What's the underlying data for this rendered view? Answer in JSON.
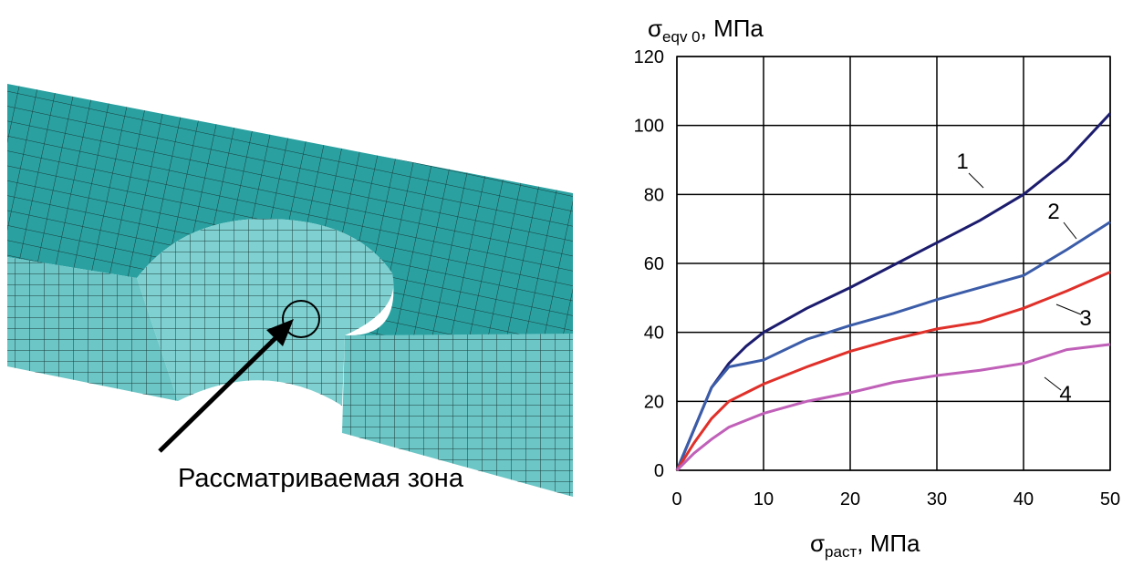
{
  "caption": "Рассматриваемая зона",
  "chart_data": {
    "type": "line",
    "y_label": {
      "symbol": "σ",
      "subscript": "eqv 0",
      "unit": ", МПа"
    },
    "x_label": {
      "symbol": "σ",
      "subscript": "раст",
      "unit": ", МПа"
    },
    "x": [
      0,
      2,
      4,
      6,
      8,
      10,
      15,
      20,
      25,
      30,
      35,
      40,
      45,
      50
    ],
    "xlim": [
      0,
      50
    ],
    "xticks": [
      0,
      10,
      20,
      30,
      40,
      50
    ],
    "ylim": [
      0,
      120
    ],
    "yticks": [
      0,
      20,
      40,
      60,
      80,
      100,
      120
    ],
    "grid": true,
    "series": [
      {
        "name": "1",
        "color": "#1c1c6e",
        "values": [
          0,
          12,
          24,
          31,
          36,
          40,
          47,
          53,
          59.5,
          66,
          72.5,
          80,
          90,
          103.5
        ]
      },
      {
        "name": "2",
        "color": "#3b5ca8",
        "values": [
          0,
          12,
          24,
          30,
          31,
          32,
          38,
          42,
          45.5,
          49.5,
          53,
          56.5,
          64,
          72
        ]
      },
      {
        "name": "3",
        "color": "#e0302a",
        "values": [
          0,
          8,
          15,
          20,
          22.5,
          25,
          30,
          34.5,
          38,
          41,
          43,
          47,
          52,
          57.5
        ]
      },
      {
        "name": "4",
        "color": "#c060b8",
        "values": [
          0,
          5,
          9,
          12.5,
          14.5,
          16.5,
          20,
          22.5,
          25.5,
          27.5,
          29,
          31,
          35,
          36.5
        ]
      }
    ]
  }
}
